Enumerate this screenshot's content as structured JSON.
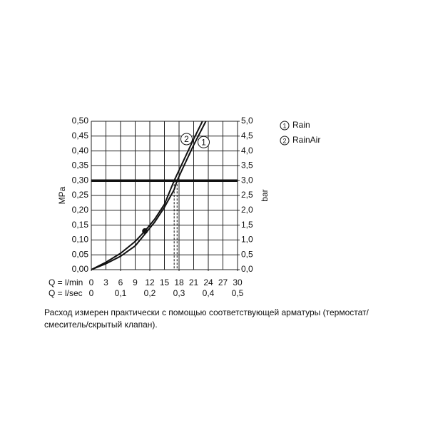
{
  "chart_data": {
    "type": "line",
    "x_axis_label": "Q = l/min",
    "x2_axis_label": "Q = l/sec",
    "y_axis_label": "MPa",
    "y2_axis_label": "bar",
    "xlim": [
      0,
      30
    ],
    "xticks": [
      0,
      3,
      6,
      9,
      12,
      15,
      18,
      21,
      24,
      27,
      30
    ],
    "x2lim": [
      0,
      0.5
    ],
    "x2ticks": [
      0,
      {
        "value": 0.1,
        "label": "0,1"
      },
      {
        "value": 0.2,
        "label": "0,2"
      },
      {
        "value": 0.3,
        "label": "0,3"
      },
      {
        "value": 0.4,
        "label": "0,4"
      },
      {
        "value": 0.5,
        "label": "0,5"
      }
    ],
    "ylim": [
      0,
      0.5
    ],
    "yticks": [
      {
        "value": 0,
        "label": "0,00"
      },
      {
        "value": 0.05,
        "label": "0,05"
      },
      {
        "value": 0.1,
        "label": "0,10"
      },
      {
        "value": 0.15,
        "label": "0,15"
      },
      {
        "value": 0.2,
        "label": "0,20"
      },
      {
        "value": 0.25,
        "label": "0,25"
      },
      {
        "value": 0.3,
        "label": "0,30"
      },
      {
        "value": 0.35,
        "label": "0,35"
      },
      {
        "value": 0.4,
        "label": "0,40"
      },
      {
        "value": 0.45,
        "label": "0,45"
      },
      {
        "value": 0.5,
        "label": "0,50"
      }
    ],
    "y2lim": [
      0,
      5
    ],
    "y2ticks": [
      {
        "value": 0,
        "label": "0,0"
      },
      {
        "value": 0.5,
        "label": "0,5"
      },
      {
        "value": 1,
        "label": "1,0"
      },
      {
        "value": 1.5,
        "label": "1,5"
      },
      {
        "value": 2,
        "label": "2,0"
      },
      {
        "value": 2.5,
        "label": "2,5"
      },
      {
        "value": 3,
        "label": "3,0"
      },
      {
        "value": 3.5,
        "label": "3,5"
      },
      {
        "value": 4,
        "label": "4,0"
      },
      {
        "value": 4.5,
        "label": "4,5"
      },
      {
        "value": 5,
        "label": "5,0"
      }
    ],
    "grid": true,
    "reference_line": 0.3,
    "series": [
      {
        "name": "Rain",
        "label": "1",
        "color": "#111111",
        "x": [
          0,
          3,
          6,
          9,
          11,
          13,
          15,
          17,
          17.6,
          19,
          21,
          23.5
        ],
        "values": [
          0,
          0.02,
          0.045,
          0.08,
          0.12,
          0.16,
          0.21,
          0.27,
          0.3,
          0.35,
          0.42,
          0.5
        ],
        "intersection": 17.6
      },
      {
        "name": "RainAir",
        "label": "2",
        "color": "#111111",
        "x": [
          0,
          3,
          6,
          9,
          11,
          13,
          15,
          17,
          19,
          21,
          22.8
        ],
        "values": [
          0,
          0.025,
          0.055,
          0.095,
          0.13,
          0.17,
          0.22,
          0.3,
          0.37,
          0.44,
          0.5
        ],
        "intersection": 17,
        "point": {
          "x": 11,
          "y": 0.13
        }
      }
    ],
    "caption": "Расход измерен практически с помощью соответствующей арматуры (термостат/ смеситель/скрытый клапан)."
  }
}
